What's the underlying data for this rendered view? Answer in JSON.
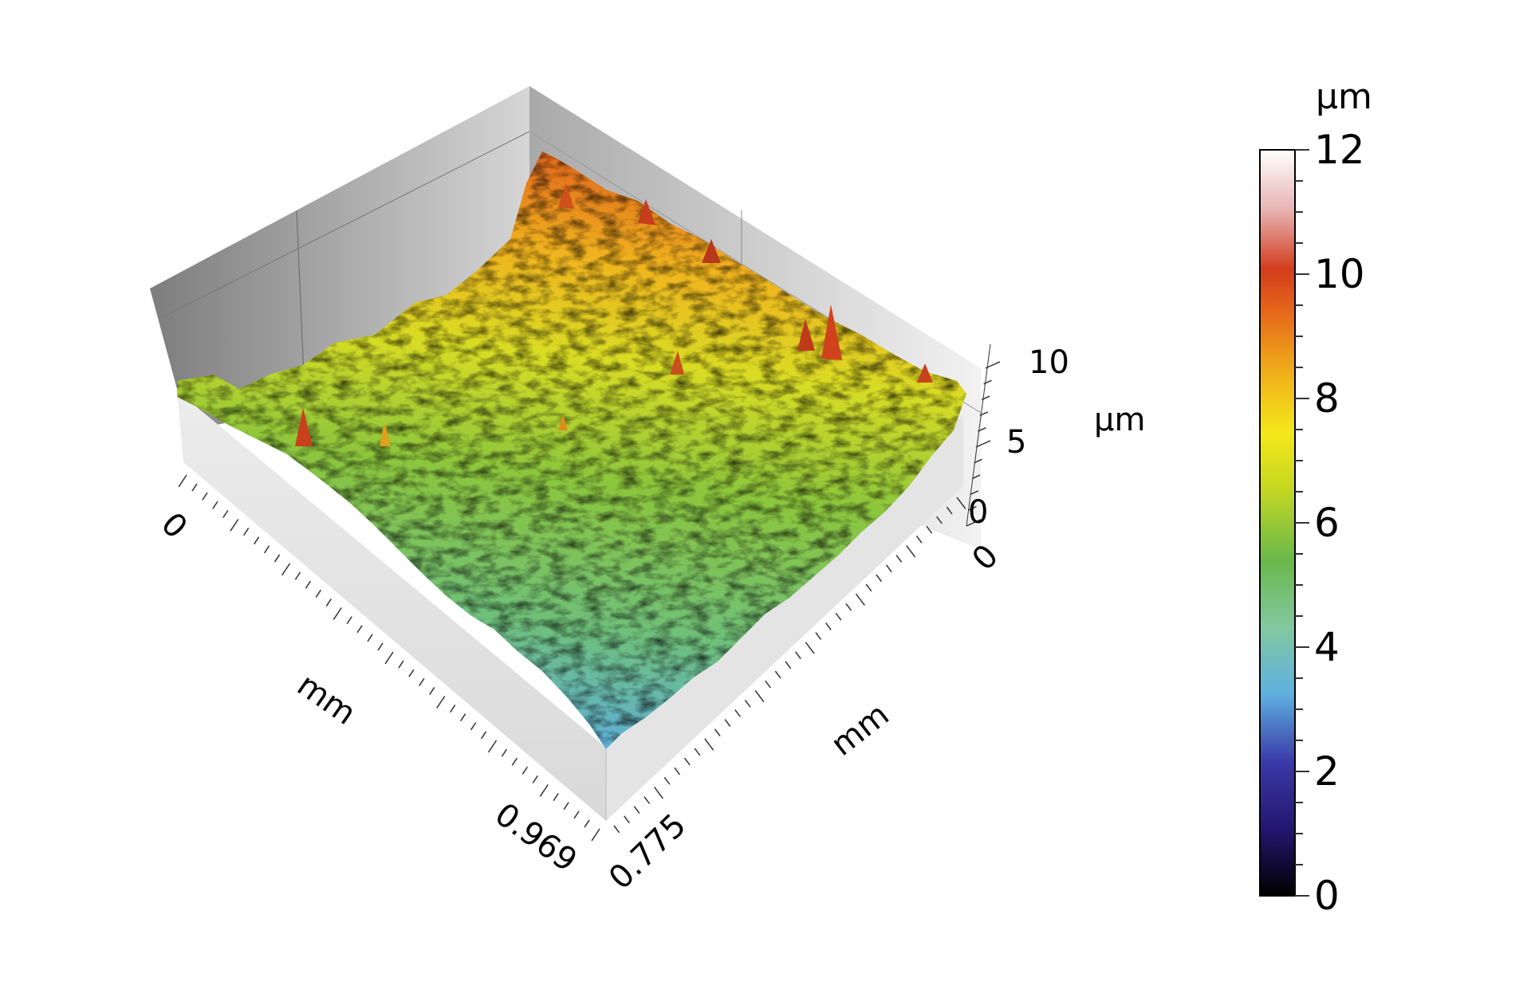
{
  "chart_data": {
    "type": "surface-3d",
    "title": "",
    "axes": {
      "x": {
        "label": "mm",
        "range": [
          0,
          0.969
        ],
        "tick_labels": [
          "0",
          "0.969"
        ]
      },
      "y": {
        "label": "mm",
        "range": [
          0,
          0.775
        ],
        "tick_labels": [
          "0",
          "0.775"
        ]
      },
      "z": {
        "label": "µm",
        "range": [
          0,
          10
        ],
        "tick_labels": [
          "0",
          "5",
          "10"
        ]
      }
    },
    "colorbar": {
      "unit": "µm",
      "range": [
        0,
        12
      ],
      "ticks": [
        0,
        2,
        4,
        6,
        8,
        10,
        12
      ],
      "tick_labels": [
        "0",
        "2",
        "4",
        "6",
        "8",
        "10",
        "12"
      ],
      "colors": [
        "#000000",
        "#2a1a8c",
        "#5fb0e0",
        "#6ab84a",
        "#f2e61a",
        "#f08a1a",
        "#d23c1c",
        "#ffffff"
      ]
    },
    "surface_description": {
      "height_trend": [
        {
          "region": "near corner (x=0.969, y=0.775)",
          "height_um": 4
        },
        {
          "region": "center",
          "height_um": 5
        },
        {
          "region": "far corner (x=0, y=0)",
          "height_um": 8
        }
      ]
    }
  }
}
